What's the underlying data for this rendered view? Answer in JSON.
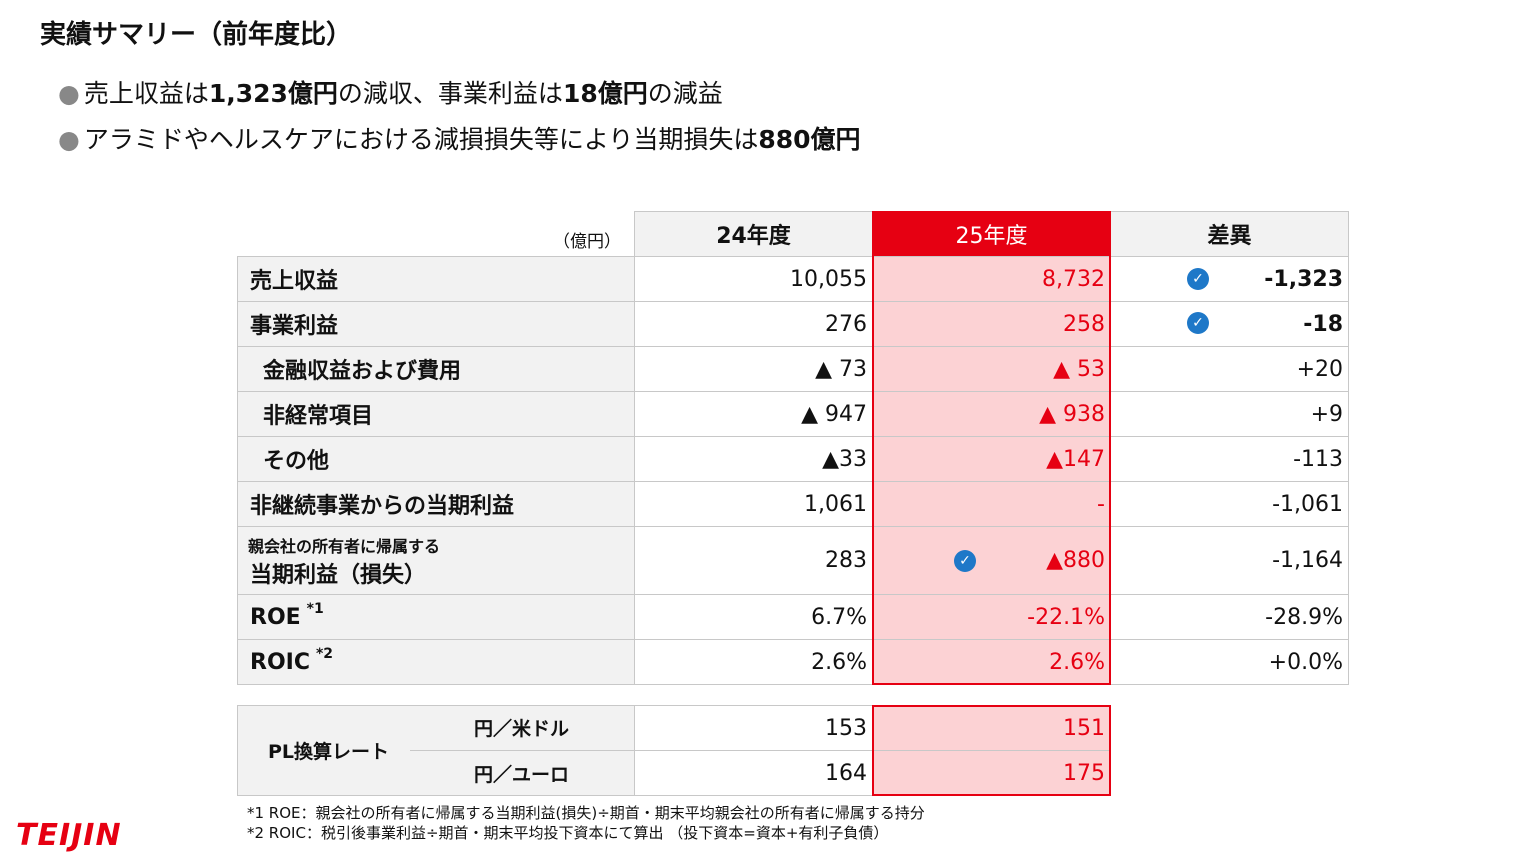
{
  "header": {
    "title": "実績サマリー（前年度比）"
  },
  "bullets": [
    [
      "売上収益は",
      "1,323億円",
      "の減収、事業利益は",
      "18億円",
      "の減益"
    ],
    [
      "アラミドやヘルスケアにおける減損損失等により当期損失は",
      "880億円"
    ]
  ],
  "table": {
    "unit": "（億円）",
    "columns": [
      "24年度",
      "25年度",
      "差異"
    ],
    "rows": [
      {
        "label": "売上収益",
        "values": [
          "10,055",
          "8,732",
          "-1,323"
        ]
      },
      {
        "label": "事業利益",
        "values": [
          "276",
          "258",
          "-18"
        ]
      },
      {
        "label": "金融収益および費用",
        "values": [
          "▲ 73",
          "▲ 53",
          "+20"
        ]
      },
      {
        "label": "非経常項目",
        "values": [
          "▲ 947",
          "▲ 938",
          "+9"
        ]
      },
      {
        "label": "その他",
        "values": [
          "▲33",
          "▲147",
          "-113"
        ]
      },
      {
        "label": "非継続事業からの当期利益",
        "values": [
          "1,061",
          "-",
          "-1,061"
        ]
      },
      {
        "prefix": "親会社の所有者に帰属する",
        "label": "当期利益（損失）",
        "values": [
          "283",
          "▲880",
          "-1,164"
        ]
      },
      {
        "label": "ROE",
        "note": "*1",
        "values": [
          "6.7%",
          "-22.1%",
          "-28.9%"
        ]
      },
      {
        "label": "ROIC",
        "note": "*2",
        "values": [
          "2.6%",
          "2.6%",
          "+0.0%"
        ]
      }
    ]
  },
  "rates": {
    "label": "PL換算レート",
    "rows": [
      {
        "label": "円／米ドル",
        "values": [
          "153",
          "151"
        ]
      },
      {
        "label": "円／ユーロ",
        "values": [
          "164",
          "175"
        ]
      }
    ]
  },
  "footnotes": [
    "*1 ROE：親会社の所有者に帰属する当期利益(損失)÷期首・期末平均親会社の所有者に帰属する持分",
    "*2 ROIC：税引後事業利益÷期首・期末平均投下資本にて算出 （投下資本=資本+有利子負債）"
  ],
  "logo": "TEIJIN"
}
